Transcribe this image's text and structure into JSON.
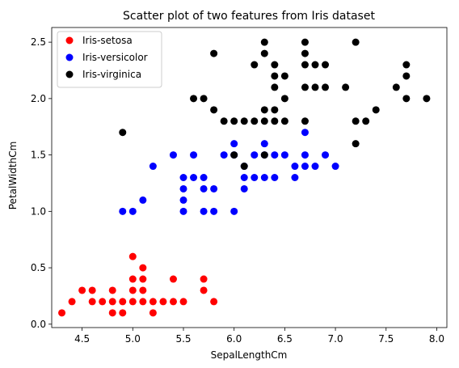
{
  "chart_data": {
    "type": "scatter",
    "title": "Scatter plot of two features from Iris dataset",
    "xlabel": "SepalLengthCm",
    "ylabel": "PetalWidthCm",
    "xlim": [
      4.2,
      8.1
    ],
    "ylim": [
      -0.03,
      2.63
    ],
    "xticks": [
      "4.5",
      "5.0",
      "5.5",
      "6.0",
      "6.5",
      "7.0",
      "7.5",
      "8.0"
    ],
    "yticks": [
      "0.0",
      "0.5",
      "1.0",
      "1.5",
      "2.0",
      "2.5"
    ],
    "legend_position": "top-left",
    "grid": false,
    "series": [
      {
        "name": "Iris-setosa",
        "color": "#ff0000",
        "points": [
          [
            4.3,
            0.1
          ],
          [
            4.4,
            0.2
          ],
          [
            4.5,
            0.3
          ],
          [
            4.6,
            0.2
          ],
          [
            4.6,
            0.3
          ],
          [
            4.7,
            0.2
          ],
          [
            4.8,
            0.1
          ],
          [
            4.8,
            0.2
          ],
          [
            4.8,
            0.3
          ],
          [
            4.9,
            0.1
          ],
          [
            4.9,
            0.2
          ],
          [
            5.0,
            0.2
          ],
          [
            5.0,
            0.3
          ],
          [
            5.0,
            0.4
          ],
          [
            5.0,
            0.6
          ],
          [
            5.1,
            0.2
          ],
          [
            5.1,
            0.3
          ],
          [
            5.1,
            0.4
          ],
          [
            5.1,
            0.5
          ],
          [
            5.2,
            0.1
          ],
          [
            5.2,
            0.2
          ],
          [
            5.3,
            0.2
          ],
          [
            5.4,
            0.2
          ],
          [
            5.4,
            0.4
          ],
          [
            5.5,
            0.2
          ],
          [
            5.7,
            0.3
          ],
          [
            5.7,
            0.4
          ],
          [
            5.8,
            0.2
          ]
        ]
      },
      {
        "name": "Iris-versicolor",
        "color": "#0000ff",
        "points": [
          [
            4.9,
            1.0
          ],
          [
            5.0,
            1.0
          ],
          [
            5.1,
            1.1
          ],
          [
            5.2,
            1.4
          ],
          [
            5.4,
            1.5
          ],
          [
            5.5,
            1.0
          ],
          [
            5.5,
            1.1
          ],
          [
            5.5,
            1.2
          ],
          [
            5.5,
            1.3
          ],
          [
            5.6,
            1.3
          ],
          [
            5.6,
            1.5
          ],
          [
            5.7,
            1.0
          ],
          [
            5.7,
            1.2
          ],
          [
            5.7,
            1.3
          ],
          [
            5.8,
            1.0
          ],
          [
            5.8,
            1.2
          ],
          [
            5.9,
            1.5
          ],
          [
            6.0,
            1.0
          ],
          [
            6.0,
            1.5
          ],
          [
            6.0,
            1.6
          ],
          [
            6.1,
            1.2
          ],
          [
            6.1,
            1.3
          ],
          [
            6.1,
            1.4
          ],
          [
            6.2,
            1.3
          ],
          [
            6.2,
            1.5
          ],
          [
            6.3,
            1.3
          ],
          [
            6.3,
            1.5
          ],
          [
            6.3,
            1.6
          ],
          [
            6.4,
            1.3
          ],
          [
            6.4,
            1.5
          ],
          [
            6.5,
            1.5
          ],
          [
            6.6,
            1.3
          ],
          [
            6.6,
            1.4
          ],
          [
            6.7,
            1.4
          ],
          [
            6.7,
            1.5
          ],
          [
            6.7,
            1.7
          ],
          [
            6.8,
            1.4
          ],
          [
            6.9,
            1.5
          ],
          [
            7.0,
            1.4
          ]
        ]
      },
      {
        "name": "Iris-virginica",
        "color": "#000000",
        "points": [
          [
            4.9,
            1.7
          ],
          [
            5.6,
            2.0
          ],
          [
            5.7,
            2.0
          ],
          [
            5.8,
            1.9
          ],
          [
            5.8,
            2.4
          ],
          [
            5.9,
            1.8
          ],
          [
            6.0,
            1.8
          ],
          [
            6.0,
            1.5
          ],
          [
            6.1,
            1.8
          ],
          [
            6.1,
            1.4
          ],
          [
            6.2,
            1.8
          ],
          [
            6.2,
            2.3
          ],
          [
            6.3,
            1.8
          ],
          [
            6.3,
            1.9
          ],
          [
            6.3,
            2.4
          ],
          [
            6.3,
            2.5
          ],
          [
            6.3,
            1.5
          ],
          [
            6.4,
            1.8
          ],
          [
            6.4,
            1.9
          ],
          [
            6.4,
            2.1
          ],
          [
            6.4,
            2.2
          ],
          [
            6.4,
            2.3
          ],
          [
            6.5,
            1.8
          ],
          [
            6.5,
            2.0
          ],
          [
            6.5,
            2.2
          ],
          [
            6.7,
            1.8
          ],
          [
            6.7,
            2.1
          ],
          [
            6.7,
            2.3
          ],
          [
            6.7,
            2.4
          ],
          [
            6.7,
            2.5
          ],
          [
            6.8,
            2.1
          ],
          [
            6.8,
            2.3
          ],
          [
            6.9,
            2.1
          ],
          [
            6.9,
            2.3
          ],
          [
            7.1,
            2.1
          ],
          [
            7.2,
            1.6
          ],
          [
            7.2,
            1.8
          ],
          [
            7.2,
            2.5
          ],
          [
            7.3,
            1.8
          ],
          [
            7.4,
            1.9
          ],
          [
            7.6,
            2.1
          ],
          [
            7.7,
            2.0
          ],
          [
            7.7,
            2.2
          ],
          [
            7.7,
            2.3
          ],
          [
            7.9,
            2.0
          ]
        ]
      }
    ]
  }
}
